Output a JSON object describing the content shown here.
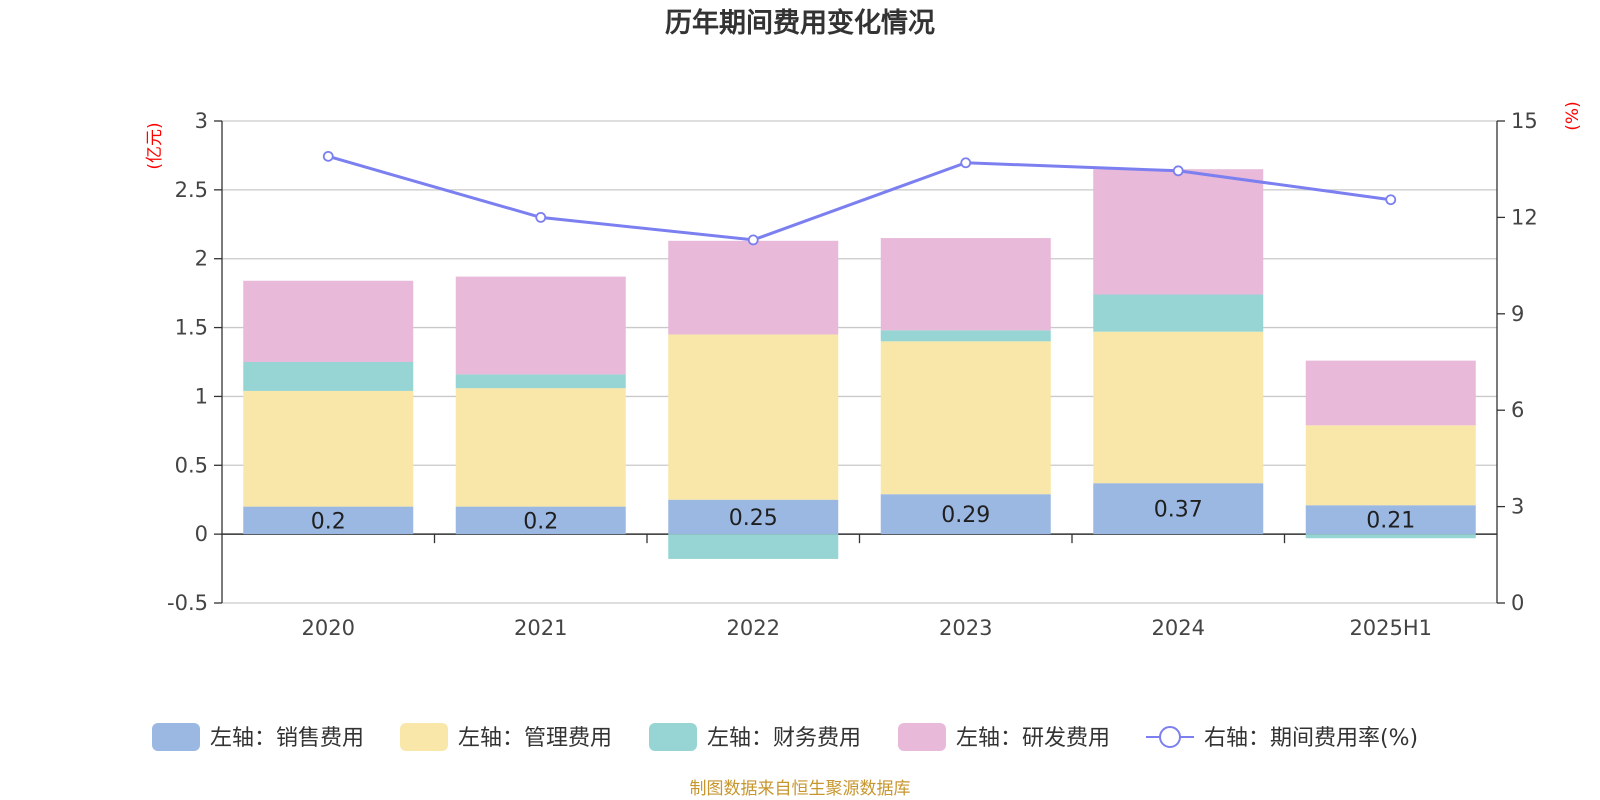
{
  "chart_data": {
    "type": "bar",
    "title": "历年期间费用变化情况",
    "categories": [
      "2020",
      "2021",
      "2022",
      "2023",
      "2024",
      "2025H1"
    ],
    "y_left": {
      "unit": "(亿元)",
      "ylim": [
        -0.5,
        3
      ],
      "ticks": [
        "-0.5",
        "0",
        "0.5",
        "1",
        "1.5",
        "2",
        "2.5",
        "3"
      ]
    },
    "y_right": {
      "unit": "(%)",
      "ylim": [
        0,
        15
      ],
      "ticks": [
        "0",
        "3",
        "6",
        "9",
        "12",
        "15"
      ]
    },
    "series": [
      {
        "name": "左轴：销售费用",
        "axis": "left",
        "kind": "bar",
        "color": "#9bb8e2",
        "values": [
          0.2,
          0.2,
          0.25,
          0.29,
          0.37,
          0.21
        ],
        "labels": [
          "0.2",
          "0.2",
          "0.25",
          "0.29",
          "0.37",
          "0.21"
        ]
      },
      {
        "name": "左轴：管理费用",
        "axis": "left",
        "kind": "bar",
        "color": "#f8e7a8",
        "values": [
          0.84,
          0.86,
          1.2,
          1.11,
          1.1,
          0.58
        ]
      },
      {
        "name": "左轴：财务费用",
        "axis": "left",
        "kind": "bar",
        "color": "#96d5d3",
        "values": [
          0.21,
          0.1,
          -0.18,
          0.08,
          0.27,
          -0.03
        ]
      },
      {
        "name": "左轴：研发费用",
        "axis": "left",
        "kind": "bar",
        "color": "#e8b9d9",
        "values": [
          0.59,
          0.71,
          0.68,
          0.67,
          0.91,
          0.47
        ]
      },
      {
        "name": "右轴：期间费用率(%)",
        "axis": "right",
        "kind": "line",
        "color": "#7b7ff0",
        "values": [
          13.9,
          12.0,
          11.3,
          13.7,
          13.45,
          12.55
        ]
      }
    ],
    "grid": true,
    "legend_position": "bottom"
  },
  "footer": {
    "source": "制图数据来自恒生聚源数据库"
  }
}
